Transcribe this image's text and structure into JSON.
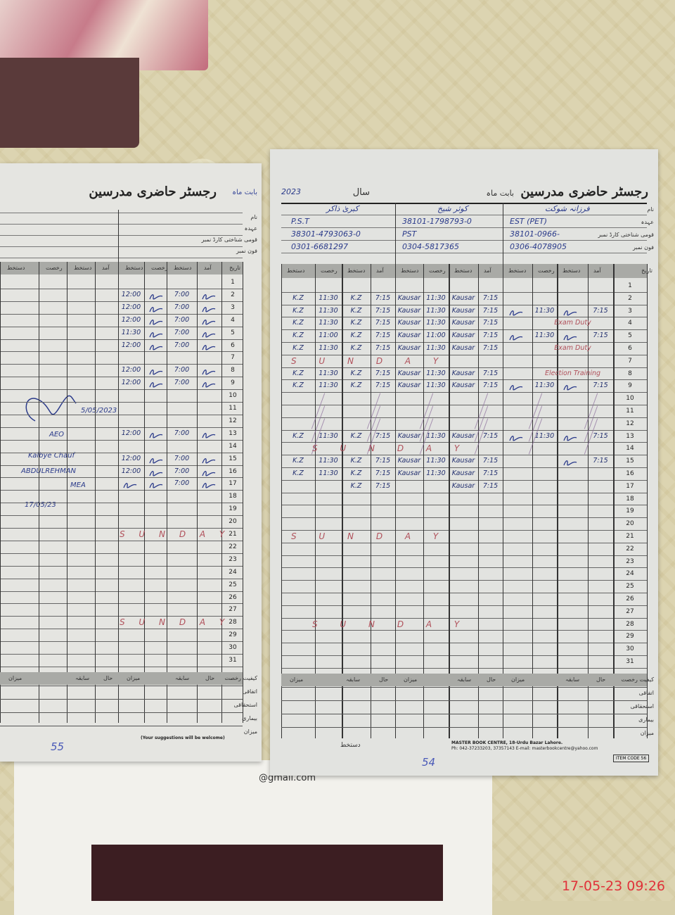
{
  "register_title": "رجسٹر حاضری مدرسین",
  "month_label": "بابت ماہ",
  "year_label": "سال",
  "year_value": "2023",
  "row_labels": [
    "نام",
    "عہدہ",
    "قومی شناختی کارڈ نمبر",
    "فون نمبر",
    "تاریخ"
  ],
  "col_headers": [
    "دستخط",
    "رخصت",
    "دستخط",
    "آمد"
  ],
  "summary_labels": [
    "کیفیت رخصت",
    "اتفاقی",
    "استحقاقی",
    "بیماری",
    "میزان"
  ],
  "summary_headers": [
    "میزان",
    "سابقہ",
    "حال"
  ],
  "right_page": {
    "teachers": [
      {
        "name": "کبریٰ ذاکر",
        "designation": "P.S.T",
        "cnic": "38301-4793063-0",
        "phone": "0301-6681297"
      },
      {
        "name": "کوثر شیخ",
        "designation": "PST",
        "cnic": "38101-1798793-0",
        "phone": "0304-5817365"
      },
      {
        "name": "فرزانہ شوکت",
        "designation": "EST (PET)",
        "cnic": "38101-0966-",
        "phone": "0306-4078905"
      }
    ],
    "rows": {
      "2": [
        "K.Z",
        "11:30",
        "K.Z",
        "7:15",
        "Kausar",
        "11:30",
        "Kausar",
        "7:15",
        "",
        "",
        "",
        ""
      ],
      "3": [
        "K.Z",
        "11:30",
        "K.Z",
        "7:15",
        "Kausar",
        "11:30",
        "Kausar",
        "7:15",
        "~sig",
        "11:30",
        "~sig",
        "7:15"
      ],
      "4": [
        "K.Z",
        "11:30",
        "K.Z",
        "7:15",
        "Kausar",
        "11:30",
        "Kausar",
        "7:15",
        "",
        "Exam Duty",
        "",
        ""
      ],
      "5": [
        "K.Z",
        "11:00",
        "K.Z",
        "7:15",
        "Kausar",
        "11:00",
        "Kausar",
        "7:15",
        "~sig",
        "11:30",
        "~sig",
        "7:15"
      ],
      "6": [
        "K.Z",
        "11:30",
        "K.Z",
        "7:15",
        "Kausar",
        "11:30",
        "Kausar",
        "7:15",
        "",
        "Exam Duty",
        "",
        ""
      ],
      "8": [
        "K.Z",
        "11:30",
        "K.Z",
        "7:15",
        "Kausar",
        "11:30",
        "Kausar",
        "7:15",
        "",
        "Election Training",
        "",
        ""
      ],
      "9": [
        "K.Z",
        "11:30",
        "K.Z",
        "7:15",
        "Kausar",
        "11:30",
        "Kausar",
        "7:15",
        "~sig",
        "11:30",
        "~sig",
        "7:15"
      ],
      "13": [
        "K.Z",
        "11:30",
        "K.Z",
        "7:15",
        "Kausar",
        "11:30",
        "Kausar",
        "7:15",
        "~sig",
        "11:30",
        "~sig",
        "7:15"
      ],
      "15": [
        "K.Z",
        "11:30",
        "K.Z",
        "7:15",
        "Kausar",
        "11:30",
        "Kausar",
        "7:15",
        "",
        "",
        "~sig",
        "7:15"
      ],
      "16": [
        "K.Z",
        "11:30",
        "K.Z",
        "7:15",
        "Kausar",
        "11:30",
        "Kausar",
        "7:15",
        "",
        "",
        "",
        ""
      ],
      "17": [
        "",
        "",
        "K.Z",
        "7:15",
        "",
        "",
        "Kausar",
        "7:15",
        "",
        "",
        "",
        ""
      ]
    },
    "sunday_label": "S U N D A Y",
    "sundays": [
      7,
      14,
      21,
      28
    ],
    "holiday_slashes": [
      10,
      11,
      12
    ],
    "page_number": "54",
    "signature_label": "دستخط",
    "publisher": "MASTER BOOK CENTRE, 18-Urdu Bazar Lahore.",
    "publisher_contact": "Ph: 042-37233203, 37357143 E-mail: masterbookcentre@yahoo.com",
    "item_code": "ITEM CODE 56"
  },
  "left_page": {
    "rows": {
      "2": [
        "12:00",
        "",
        "7:00",
        ""
      ],
      "3": [
        "12:00",
        "",
        "7:00",
        ""
      ],
      "4": [
        "12:00",
        "",
        "7:00",
        ""
      ],
      "5": [
        "11:30",
        "",
        "7:00",
        ""
      ],
      "6": [
        "12:00",
        "",
        "7:00",
        ""
      ],
      "8": [
        "12:00",
        "",
        "7:00",
        ""
      ],
      "9": [
        "12:00",
        "",
        "7:00",
        ""
      ],
      "13": [
        "12:00",
        "",
        "7:00",
        ""
      ],
      "15": [
        "12:00",
        "",
        "7:00",
        ""
      ],
      "16": [
        "12:00",
        "",
        "7:00",
        ""
      ],
      "17": [
        "",
        "",
        "7:00",
        ""
      ]
    },
    "sunday_label": "S U N D A Y",
    "sundays": [
      21,
      28
    ],
    "inspection_note": [
      "AEO",
      "5/05/2023",
      "Kalbye Chauf",
      "ABDULREHMAN",
      "MEA",
      "17/05/23"
    ],
    "suggestions": "(Your suggestions will be welcome)",
    "page_number": "55"
  },
  "underlying_text": "@gmail.com",
  "timestamp": "17-05-23  09:26"
}
